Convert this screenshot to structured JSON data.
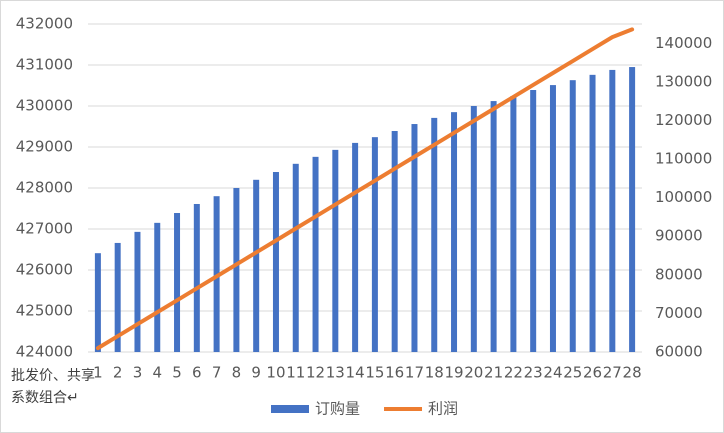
{
  "chart_data": {
    "type": "bar-line",
    "x_label": "批发价、共享系数组合↵",
    "categories": [
      "1",
      "2",
      "3",
      "4",
      "5",
      "6",
      "7",
      "8",
      "9",
      "10",
      "11",
      "12",
      "13",
      "14",
      "15",
      "16",
      "17",
      "18",
      "19",
      "20",
      "21",
      "22",
      "23",
      "24",
      "25",
      "26",
      "27",
      "28"
    ],
    "series": [
      {
        "name": "订购量",
        "type": "bar",
        "color": "#4472c4",
        "values": [
          426410,
          426660,
          426930,
          427150,
          427390,
          427610,
          427800,
          428000,
          428200,
          428390,
          428590,
          428760,
          428930,
          429100,
          429240,
          429390,
          429560,
          429710,
          429850,
          430000,
          430120,
          430240,
          430390,
          430510,
          430630,
          430760,
          430880,
          430950
        ]
      },
      {
        "name": "利润",
        "type": "line",
        "axis": "y2",
        "color": "#ed7d31",
        "values": [
          61000,
          64100,
          67200,
          70300,
          73400,
          76500,
          79600,
          82700,
          85800,
          88900,
          92000,
          95100,
          98200,
          101300,
          104400,
          107500,
          110600,
          113700,
          116800,
          119900,
          123000,
          126100,
          129200,
          132300,
          135400,
          138500,
          141600,
          143600
        ]
      }
    ],
    "ylim": [
      424000,
      432000
    ],
    "yticks": [
      424000,
      425000,
      426000,
      427000,
      428000,
      429000,
      430000,
      431000,
      432000
    ],
    "y2lim": [
      60000,
      145000
    ],
    "y2ticks": [
      60000,
      70000,
      80000,
      90000,
      100000,
      110000,
      120000,
      130000,
      140000
    ],
    "grid": true
  }
}
